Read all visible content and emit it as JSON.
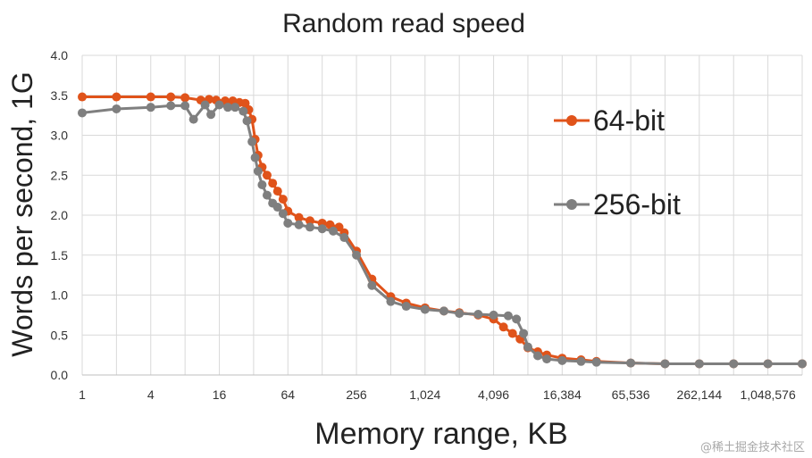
{
  "chart_data": {
    "type": "line",
    "title": "Random read speed",
    "xlabel": "Memory range, KB",
    "ylabel": "Words per second, 1G",
    "x_scale": "log2",
    "xlim": [
      1,
      2097152
    ],
    "ylim": [
      0,
      4.0
    ],
    "y_ticks": [
      "0.0",
      "0.5",
      "1.0",
      "1.5",
      "2.0",
      "2.5",
      "3.0",
      "3.5",
      "4.0"
    ],
    "x_ticks": [
      {
        "value": 1,
        "label": "1"
      },
      {
        "value": 4,
        "label": "4"
      },
      {
        "value": 16,
        "label": "16"
      },
      {
        "value": 64,
        "label": "64"
      },
      {
        "value": 256,
        "label": "256"
      },
      {
        "value": 1024,
        "label": "1,024"
      },
      {
        "value": 4096,
        "label": "4,096"
      },
      {
        "value": 16384,
        "label": "16,384"
      },
      {
        "value": 65536,
        "label": "65,536"
      },
      {
        "value": 262144,
        "label": "262,144"
      },
      {
        "value": 1048576,
        "label": "1,048,576"
      }
    ],
    "grid": true,
    "legend_position": "right",
    "series": [
      {
        "name": "64-bit",
        "color": "#e0531a",
        "points": [
          [
            1,
            3.48
          ],
          [
            2,
            3.48
          ],
          [
            4,
            3.48
          ],
          [
            6,
            3.48
          ],
          [
            8,
            3.47
          ],
          [
            11,
            3.44
          ],
          [
            13,
            3.45
          ],
          [
            15,
            3.44
          ],
          [
            18,
            3.43
          ],
          [
            21,
            3.43
          ],
          [
            24,
            3.41
          ],
          [
            27,
            3.4
          ],
          [
            29,
            3.32
          ],
          [
            31,
            3.2
          ],
          [
            33,
            2.95
          ],
          [
            35,
            2.75
          ],
          [
            38,
            2.6
          ],
          [
            42,
            2.5
          ],
          [
            47,
            2.4
          ],
          [
            52,
            2.3
          ],
          [
            58,
            2.2
          ],
          [
            64,
            2.05
          ],
          [
            80,
            1.97
          ],
          [
            100,
            1.93
          ],
          [
            128,
            1.9
          ],
          [
            150,
            1.88
          ],
          [
            180,
            1.85
          ],
          [
            200,
            1.78
          ],
          [
            256,
            1.55
          ],
          [
            350,
            1.2
          ],
          [
            512,
            0.98
          ],
          [
            700,
            0.9
          ],
          [
            1024,
            0.84
          ],
          [
            1500,
            0.8
          ],
          [
            2048,
            0.78
          ],
          [
            3000,
            0.75
          ],
          [
            4096,
            0.7
          ],
          [
            5000,
            0.6
          ],
          [
            6000,
            0.52
          ],
          [
            7000,
            0.45
          ],
          [
            8192,
            0.34
          ],
          [
            10000,
            0.29
          ],
          [
            12000,
            0.25
          ],
          [
            16384,
            0.21
          ],
          [
            24000,
            0.19
          ],
          [
            32768,
            0.17
          ],
          [
            65536,
            0.15
          ],
          [
            131072,
            0.14
          ],
          [
            262144,
            0.14
          ],
          [
            524288,
            0.14
          ],
          [
            1048576,
            0.14
          ],
          [
            2097152,
            0.14
          ]
        ]
      },
      {
        "name": "256-bit",
        "color": "#7f7f7f",
        "points": [
          [
            1,
            3.28
          ],
          [
            2,
            3.33
          ],
          [
            4,
            3.35
          ],
          [
            6,
            3.37
          ],
          [
            8,
            3.37
          ],
          [
            9.5,
            3.2
          ],
          [
            12,
            3.38
          ],
          [
            13.5,
            3.26
          ],
          [
            16,
            3.38
          ],
          [
            19,
            3.35
          ],
          [
            22,
            3.35
          ],
          [
            26,
            3.3
          ],
          [
            28,
            3.18
          ],
          [
            31,
            2.92
          ],
          [
            33,
            2.72
          ],
          [
            35,
            2.55
          ],
          [
            38,
            2.38
          ],
          [
            42,
            2.25
          ],
          [
            47,
            2.15
          ],
          [
            52,
            2.1
          ],
          [
            58,
            2.02
          ],
          [
            64,
            1.9
          ],
          [
            80,
            1.88
          ],
          [
            100,
            1.85
          ],
          [
            128,
            1.83
          ],
          [
            160,
            1.8
          ],
          [
            200,
            1.72
          ],
          [
            256,
            1.5
          ],
          [
            350,
            1.12
          ],
          [
            512,
            0.92
          ],
          [
            700,
            0.86
          ],
          [
            1024,
            0.82
          ],
          [
            1500,
            0.8
          ],
          [
            2048,
            0.77
          ],
          [
            3000,
            0.76
          ],
          [
            4096,
            0.75
          ],
          [
            5500,
            0.74
          ],
          [
            6500,
            0.7
          ],
          [
            7500,
            0.52
          ],
          [
            8192,
            0.35
          ],
          [
            10000,
            0.24
          ],
          [
            12000,
            0.2
          ],
          [
            16384,
            0.18
          ],
          [
            24000,
            0.17
          ],
          [
            32768,
            0.16
          ],
          [
            65536,
            0.15
          ],
          [
            131072,
            0.14
          ],
          [
            262144,
            0.14
          ],
          [
            524288,
            0.14
          ],
          [
            1048576,
            0.14
          ],
          [
            2097152,
            0.14
          ]
        ]
      }
    ]
  },
  "watermark": "@稀土掘金技术社区"
}
